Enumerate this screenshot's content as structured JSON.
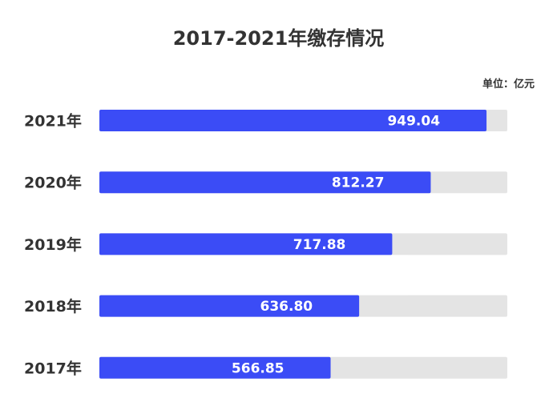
{
  "chart_data": {
    "type": "bar",
    "orientation": "horizontal",
    "title": "2017-2021年缴存情况",
    "unit_label": "单位：亿元",
    "categories": [
      "2021年",
      "2020年",
      "2019年",
      "2018年",
      "2017年"
    ],
    "values": [
      949.04,
      812.27,
      717.88,
      636.8,
      566.85
    ],
    "value_labels": [
      "949.04",
      "812.27",
      "717.88",
      "636.80",
      "566.85"
    ],
    "xlim": [
      0,
      1000
    ],
    "grid": false,
    "legend": "none",
    "colors": {
      "bar": "#3b4cf6",
      "track": "#e4e4e4",
      "text": "#333333"
    }
  }
}
